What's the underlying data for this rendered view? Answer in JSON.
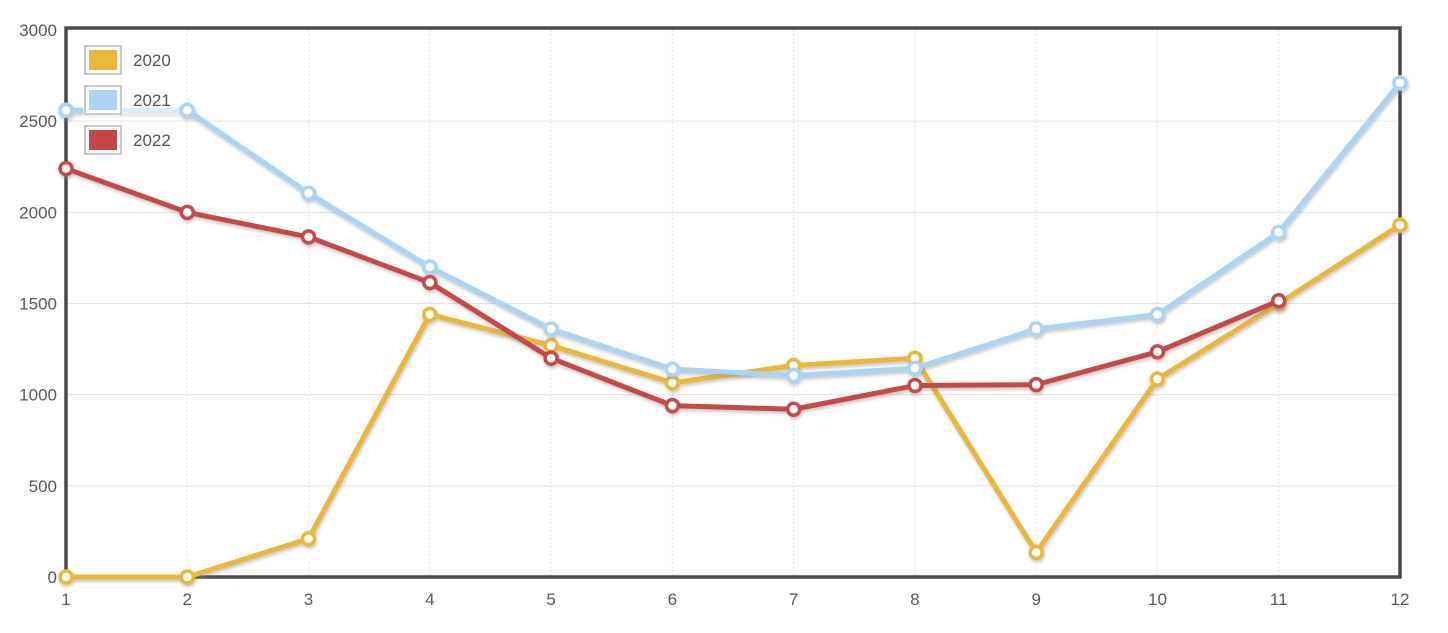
{
  "chart_data": {
    "type": "line",
    "title": "",
    "xlabel": "",
    "ylabel": "",
    "x": [
      1,
      2,
      3,
      4,
      5,
      6,
      7,
      8,
      9,
      10,
      11,
      12
    ],
    "x_tick_labels": [
      "1",
      "2",
      "3",
      "4",
      "5",
      "6",
      "7",
      "8",
      "9",
      "10",
      "11",
      "12"
    ],
    "y_tick_labels": [
      "0",
      "500",
      "1000",
      "1500",
      "2000",
      "2500",
      "3000"
    ],
    "ylim": [
      0,
      3000
    ],
    "ytick_step": 500,
    "grid": true,
    "legend_position": "top-left-inside",
    "series": [
      {
        "name": "2020",
        "color": "#EAB73C",
        "x": [
          1,
          2,
          3,
          4,
          5,
          6,
          7,
          8,
          9,
          10,
          11,
          12
        ],
        "values": [
          0,
          0,
          210,
          1440,
          1270,
          1065,
          1160,
          1200,
          135,
          1085,
          1500,
          1930
        ]
      },
      {
        "name": "2021",
        "color": "#ABD4F2",
        "x": [
          1,
          2,
          3,
          4,
          5,
          6,
          7,
          8,
          9,
          10,
          11,
          12
        ],
        "values": [
          2560,
          2560,
          2105,
          1700,
          1360,
          1140,
          1105,
          1145,
          1360,
          1440,
          1890,
          2710
        ]
      },
      {
        "name": "2022",
        "color": "#C54848",
        "x": [
          1,
          2,
          3,
          4,
          5,
          6,
          7,
          8,
          9,
          10,
          11
        ],
        "values": [
          2240,
          2000,
          1865,
          1615,
          1200,
          940,
          920,
          1050,
          1055,
          1235,
          1515
        ]
      }
    ],
    "style": {
      "background": "#FFFFFF",
      "axis_border_color": "#4A4A4A",
      "h_grid_color": "#E3E3E3",
      "v_grid_color": "#D9D9D9",
      "tick_text_color": "#595959",
      "line_width": 5,
      "marker_radius": 6,
      "marker_fill": "#FFFFFF",
      "legend_swatch_border": "#C9C9C9"
    }
  }
}
